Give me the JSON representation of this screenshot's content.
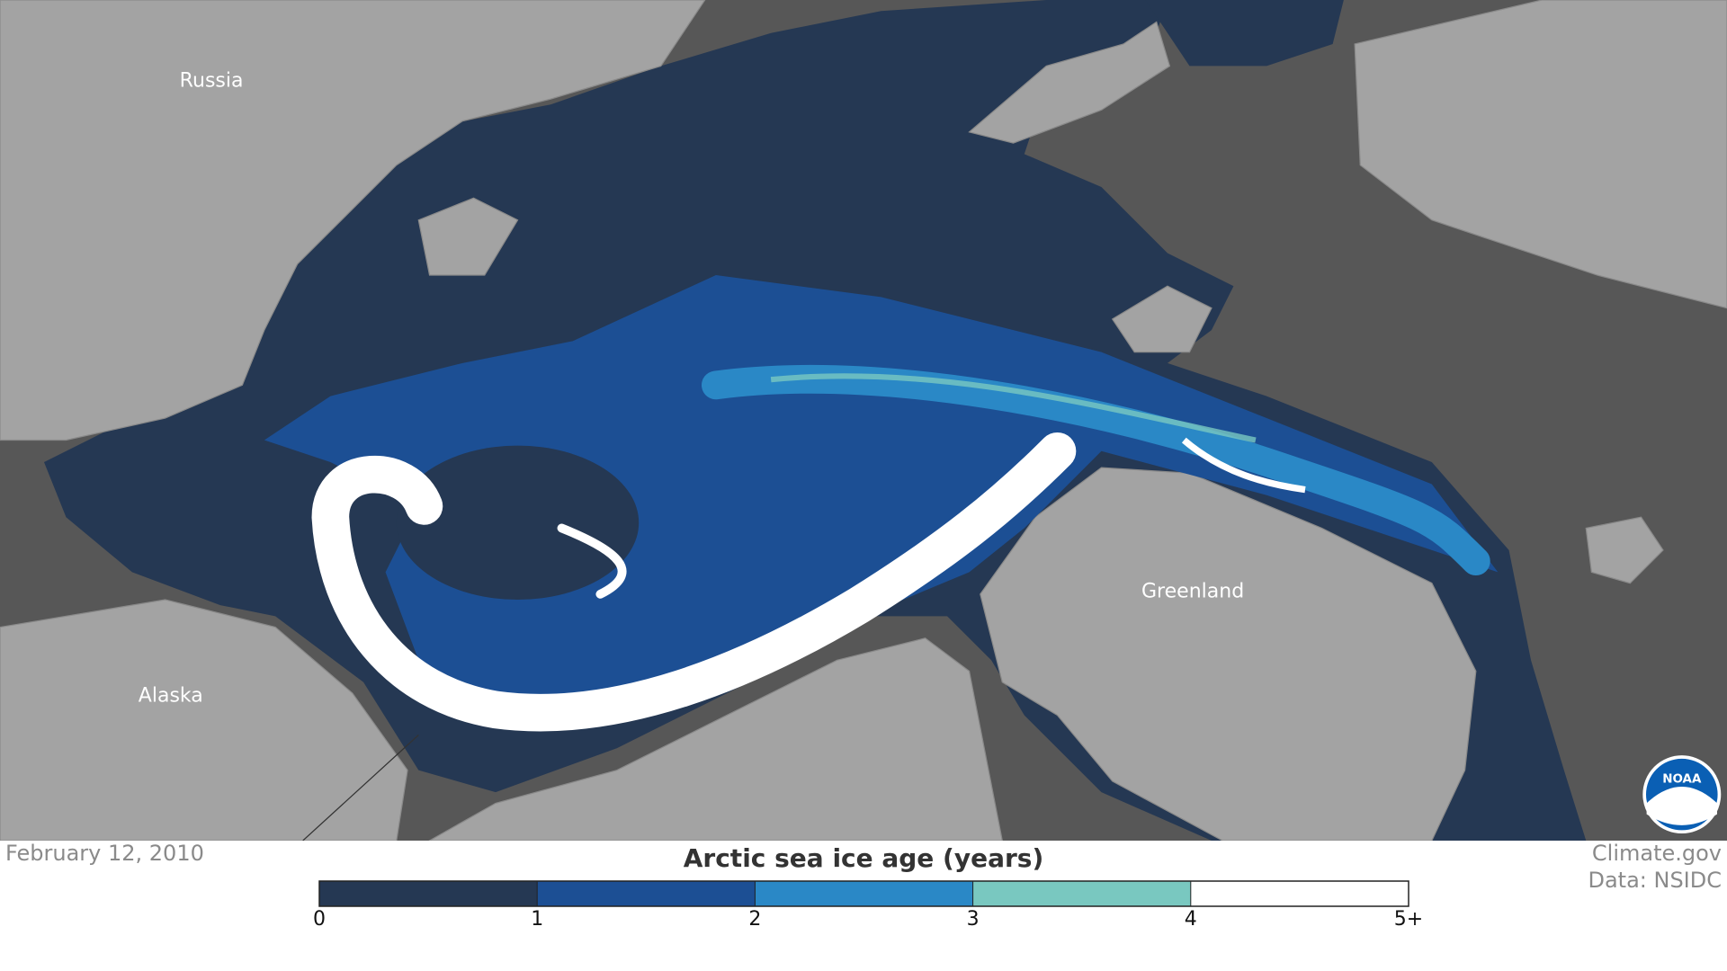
{
  "map": {
    "labels": {
      "russia": "Russia",
      "alaska": "Alaska",
      "greenland": "Greenland"
    },
    "logo": "NOAA"
  },
  "date": "February 12, 2010",
  "credits": [
    "Climate.gov",
    "Data: NSIDC"
  ],
  "legend": {
    "title": "Arctic sea ice age (years)",
    "colors": [
      "#253853",
      "#1c4f94",
      "#2a88c6",
      "#79c8c0",
      "#ffffff"
    ],
    "ticks": [
      0,
      1,
      2,
      3,
      4,
      {
        "value": 5,
        "label": "5+"
      }
    ]
  }
}
